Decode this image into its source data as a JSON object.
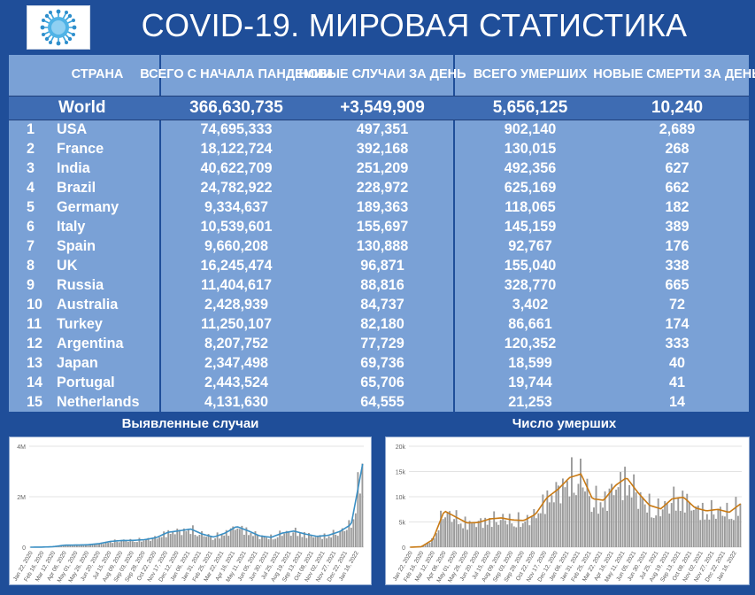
{
  "header": {
    "title": "COVID-19. МИРОВАЯ СТАТИСТИКА"
  },
  "table": {
    "headers": {
      "country": "СТРАНА",
      "total": "ВСЕГО С НАЧАЛА ПАНДЕМИИ",
      "new": "НОВЫЕ СЛУЧАИ ЗА ДЕНЬ",
      "deaths": "ВСЕГО УМЕРШИХ",
      "new_deaths": "НОВЫЕ СМЕРТИ ЗА ДЕНЬ"
    },
    "world": {
      "country": "World",
      "total": "366,630,735",
      "new": "+3,549,909",
      "deaths": "5,656,125",
      "new_deaths": "10,240"
    },
    "rows": [
      {
        "rank": "1",
        "country": "USA",
        "total": "74,695,333",
        "new": "497,351",
        "deaths": "902,140",
        "new_deaths": "2,689"
      },
      {
        "rank": "2",
        "country": "France",
        "total": "18,122,724",
        "new": "392,168",
        "deaths": "130,015",
        "new_deaths": "268"
      },
      {
        "rank": "3",
        "country": "India",
        "total": "40,622,709",
        "new": "251,209",
        "deaths": "492,356",
        "new_deaths": "627"
      },
      {
        "rank": "4",
        "country": "Brazil",
        "total": "24,782,922",
        "new": "228,972",
        "deaths": "625,169",
        "new_deaths": "662"
      },
      {
        "rank": "5",
        "country": "Germany",
        "total": "9,334,637",
        "new": "189,363",
        "deaths": "118,065",
        "new_deaths": "182"
      },
      {
        "rank": "6",
        "country": "Italy",
        "total": "10,539,601",
        "new": "155,697",
        "deaths": "145,159",
        "new_deaths": "389"
      },
      {
        "rank": "7",
        "country": "Spain",
        "total": "9,660,208",
        "new": "130,888",
        "deaths": "92,767",
        "new_deaths": "176"
      },
      {
        "rank": "8",
        "country": "UK",
        "total": "16,245,474",
        "new": "96,871",
        "deaths": "155,040",
        "new_deaths": "338"
      },
      {
        "rank": "9",
        "country": "Russia",
        "total": "11,404,617",
        "new": "88,816",
        "deaths": "328,770",
        "new_deaths": "665"
      },
      {
        "rank": "10",
        "country": "Australia",
        "total": "2,428,939",
        "new": "84,737",
        "deaths": "3,402",
        "new_deaths": "72"
      },
      {
        "rank": "11",
        "country": "Turkey",
        "total": "11,250,107",
        "new": "82,180",
        "deaths": "86,661",
        "new_deaths": "174"
      },
      {
        "rank": "12",
        "country": "Argentina",
        "total": "8,207,752",
        "new": "77,729",
        "deaths": "120,352",
        "new_deaths": "333"
      },
      {
        "rank": "13",
        "country": "Japan",
        "total": "2,347,498",
        "new": "69,736",
        "deaths": "18,599",
        "new_deaths": "40"
      },
      {
        "rank": "14",
        "country": "Portugal",
        "total": "2,443,524",
        "new": "65,706",
        "deaths": "19,744",
        "new_deaths": "41"
      },
      {
        "rank": "15",
        "country": "Netherlands",
        "total": "4,131,630",
        "new": "64,555",
        "deaths": "21,253",
        "new_deaths": "14"
      }
    ]
  },
  "colors": {
    "background": "#1f4e99",
    "table_bg": "#7aa1d6",
    "world_bg": "#3e6cb3",
    "bars": "#9a9a9a",
    "cases_line": "#3a8fc4",
    "deaths_line": "#c97a14"
  },
  "chart_data": [
    {
      "type": "bar",
      "title": "Выявленные случаи",
      "overlay": "line",
      "ylim": [
        0,
        4000000
      ],
      "y_ticks": [
        "4M",
        "2M",
        "0"
      ],
      "x_ticks": [
        "Jan 22, 2020",
        "Feb 16, 2020",
        "Mar 12, 2020",
        "Apr 06, 2020",
        "May 01, 2020",
        "May 26, 2020",
        "Jun 20, 2020",
        "Jul 15, 2020",
        "Aug 09, 2020",
        "Sep 03, 2020",
        "Sep 28, 2020",
        "Oct 22, 2020",
        "Nov 17, 2020",
        "Dec 12, 2020",
        "Jan 06, 2021",
        "Jan 31, 2021",
        "Feb 25, 2021",
        "Mar 22, 2021",
        "Apr 16, 2021",
        "May 11, 2021",
        "Jun 05, 2021",
        "Jun 30, 2021",
        "Jul 25, 2021",
        "Aug 19, 2021",
        "Sep 13, 2021",
        "Oct 08, 2021",
        "Nov 02, 2021",
        "Nov 27, 2021",
        "Dec 22, 2021",
        "Jan 16, 2022"
      ],
      "values_weekly_avg": [
        0,
        2000,
        20000,
        80000,
        85000,
        95000,
        140000,
        230000,
        265000,
        270000,
        300000,
        380000,
        590000,
        650000,
        720000,
        520000,
        400000,
        560000,
        820000,
        650000,
        450000,
        390000,
        560000,
        640000,
        520000,
        430000,
        470000,
        620000,
        900000,
        3300000
      ]
    },
    {
      "type": "bar",
      "title": "Число умерших",
      "overlay": "line",
      "ylim": [
        0,
        20000
      ],
      "y_ticks": [
        "20k",
        "15k",
        "10k",
        "5k",
        "0"
      ],
      "x_ticks": [
        "Jan 22, 2020",
        "Feb 16, 2020",
        "Mar 12, 2020",
        "Apr 06, 2020",
        "May 01, 2020",
        "May 26, 2020",
        "Jun 20, 2020",
        "Jul 15, 2020",
        "Aug 09, 2020",
        "Sep 03, 2020",
        "Sep 28, 2020",
        "Oct 22, 2020",
        "Nov 17, 2020",
        "Dec 12, 2020",
        "Jan 06, 2021",
        "Jan 31, 2021",
        "Feb 25, 2021",
        "Mar 22, 2021",
        "Apr 16, 2021",
        "May 11, 2021",
        "Jun 05, 2021",
        "Jun 30, 2021",
        "Jul 25, 2021",
        "Aug 19, 2021",
        "Sep 13, 2021",
        "Oct 08, 2021",
        "Nov 02, 2021",
        "Nov 27, 2021",
        "Dec 22, 2021",
        "Jan 16, 2022"
      ],
      "values_weekly_avg": [
        0,
        100,
        1500,
        7200,
        6000,
        4800,
        4900,
        5600,
        5800,
        5400,
        5300,
        6500,
        9800,
        11500,
        13800,
        14500,
        9600,
        9300,
        12200,
        13800,
        10800,
        8300,
        7600,
        9600,
        9900,
        7800,
        7200,
        7500,
        6900,
        8600
      ]
    }
  ]
}
